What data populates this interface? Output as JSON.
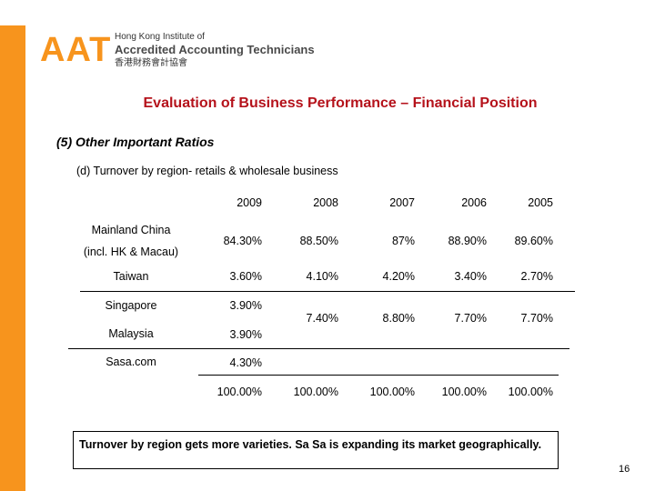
{
  "logo": {
    "mark": "AAT",
    "line1": "Hong Kong Institute of",
    "line2": "Accredited Accounting Technicians",
    "line3": "香港財務會計協會"
  },
  "title": "Evaluation of Business Performance – Financial Position",
  "subtitle": "(5) Other Important Ratios",
  "section": "(d) Turnover by region- retails & wholesale business",
  "table": {
    "years": [
      "2009",
      "2008",
      "2007",
      "2006",
      "2005"
    ],
    "mainland": {
      "label1": "Mainland China",
      "label2": "(incl. HK & Macau)",
      "values": [
        "84.30%",
        "88.50%",
        "87%",
        "88.90%",
        "89.60%"
      ]
    },
    "taiwan": {
      "label": "Taiwan",
      "values": [
        "3.60%",
        "4.10%",
        "4.20%",
        "3.40%",
        "2.70%"
      ]
    },
    "singapore": {
      "label": "Singapore",
      "value": "3.90%"
    },
    "malaysia": {
      "label": "Malaysia",
      "value": "3.90%"
    },
    "sasa": {
      "label": "Sasa.com",
      "value": "4.30%"
    },
    "combined": [
      "7.40%",
      "8.80%",
      "7.70%",
      "7.70%"
    ],
    "totals": [
      "100.00%",
      "100.00%",
      "100.00%",
      "100.00%",
      "100.00%"
    ]
  },
  "note": "Turnover by region gets more varieties. Sa Sa is expanding its market geographically.",
  "page_number": "16",
  "colors": {
    "accent": "#f7941d",
    "title": "#b5121b"
  }
}
